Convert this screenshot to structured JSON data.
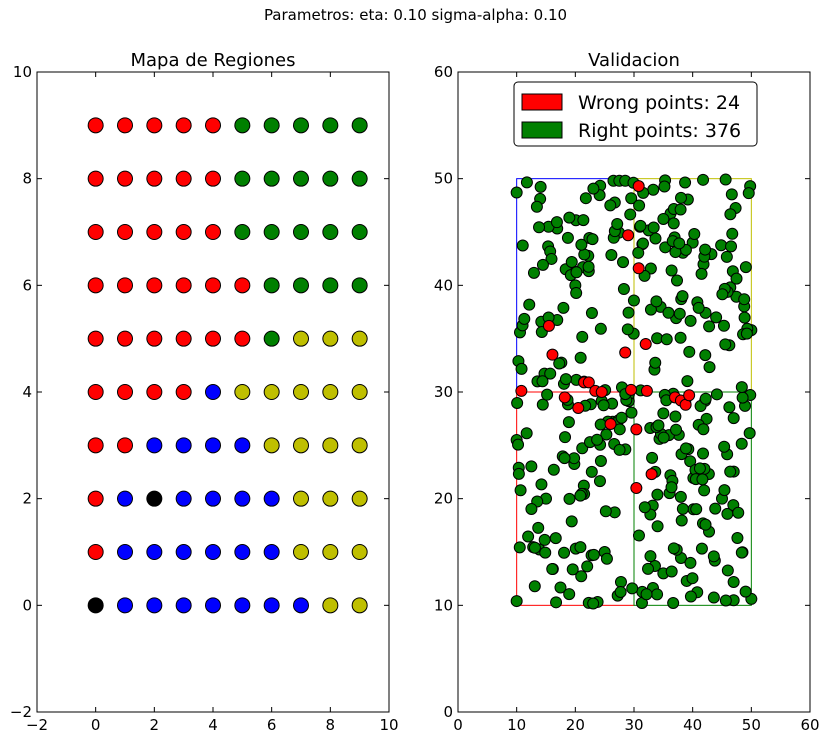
{
  "suptitle": "Parametros: eta: 0.10 sigma-alpha: 0.10",
  "colors": {
    "red": "#ff0000",
    "green": "#008000",
    "blue": "#0000ff",
    "yellow": "#bfbf00",
    "black": "#000000"
  },
  "chart_data": [
    {
      "type": "scatter",
      "title": "Mapa de Regiones",
      "xlim": [
        -2,
        10
      ],
      "ylim": [
        -2,
        10
      ],
      "xticks": [
        -2,
        0,
        2,
        4,
        6,
        8,
        10
      ],
      "yticks": [
        -2,
        0,
        2,
        4,
        6,
        8,
        10
      ],
      "grid": false,
      "rows": [
        {
          "y": 9,
          "colors": [
            "red",
            "red",
            "red",
            "red",
            "red",
            "green",
            "green",
            "green",
            "green",
            "green"
          ]
        },
        {
          "y": 8,
          "colors": [
            "red",
            "red",
            "red",
            "red",
            "red",
            "green",
            "green",
            "green",
            "green",
            "green"
          ]
        },
        {
          "y": 7,
          "colors": [
            "red",
            "red",
            "red",
            "red",
            "red",
            "green",
            "green",
            "green",
            "green",
            "green"
          ]
        },
        {
          "y": 6,
          "colors": [
            "red",
            "red",
            "red",
            "red",
            "red",
            "red",
            "green",
            "green",
            "green",
            "green"
          ]
        },
        {
          "y": 5,
          "colors": [
            "red",
            "red",
            "red",
            "red",
            "red",
            "red",
            "green",
            "yellow",
            "yellow",
            "yellow"
          ]
        },
        {
          "y": 4,
          "colors": [
            "red",
            "red",
            "red",
            "red",
            "blue",
            "yellow",
            "yellow",
            "yellow",
            "yellow",
            "yellow"
          ]
        },
        {
          "y": 3,
          "colors": [
            "red",
            "red",
            "blue",
            "blue",
            "blue",
            "blue",
            "yellow",
            "yellow",
            "yellow",
            "yellow"
          ]
        },
        {
          "y": 2,
          "colors": [
            "red",
            "blue",
            "black",
            "blue",
            "blue",
            "blue",
            "blue",
            "yellow",
            "yellow",
            "yellow"
          ]
        },
        {
          "y": 1,
          "colors": [
            "red",
            "blue",
            "blue",
            "blue",
            "blue",
            "blue",
            "blue",
            "yellow",
            "yellow",
            "yellow"
          ]
        },
        {
          "y": 0,
          "colors": [
            "black",
            "blue",
            "blue",
            "blue",
            "blue",
            "blue",
            "blue",
            "blue",
            "yellow",
            "yellow"
          ]
        }
      ]
    },
    {
      "type": "scatter",
      "title": "Validacion",
      "xlim": [
        0,
        60
      ],
      "ylim": [
        0,
        60
      ],
      "xticks": [
        0,
        10,
        20,
        30,
        40,
        50,
        60
      ],
      "yticks": [
        0,
        10,
        20,
        30,
        40,
        50,
        60
      ],
      "grid": false,
      "legend_position": "top-center",
      "series": [
        {
          "name": "Wrong points: 24",
          "color": "red",
          "count": 24
        },
        {
          "name": "Right points: 376",
          "color": "green",
          "count": 376
        }
      ],
      "regions": [
        {
          "color": "blue",
          "x": [
            10,
            30
          ],
          "y": [
            30,
            50
          ]
        },
        {
          "color": "yellow",
          "x": [
            30,
            50
          ],
          "y": [
            30,
            50
          ]
        },
        {
          "color": "red",
          "x": [
            10,
            30
          ],
          "y": [
            10,
            30
          ]
        },
        {
          "color": "green",
          "x": [
            30,
            50
          ],
          "y": [
            10,
            30
          ]
        }
      ],
      "wrong_points": [
        [
          29.0,
          44.7
        ],
        [
          30.8,
          41.6
        ],
        [
          30.8,
          49.3
        ],
        [
          28.5,
          33.7
        ],
        [
          32.0,
          34.5
        ],
        [
          15.5,
          36.2
        ],
        [
          16.1,
          33.5
        ],
        [
          10.8,
          30.1
        ],
        [
          21.5,
          30.9
        ],
        [
          22.3,
          30.9
        ],
        [
          23.4,
          30.1
        ],
        [
          24.5,
          30.0
        ],
        [
          29.5,
          30.2
        ],
        [
          32.2,
          30.1
        ],
        [
          30.4,
          26.5
        ],
        [
          37.0,
          29.5
        ],
        [
          38.0,
          29.2
        ],
        [
          38.8,
          28.8
        ],
        [
          39.4,
          29.7
        ],
        [
          30.4,
          21.0
        ],
        [
          33.0,
          22.3
        ],
        [
          18.2,
          29.5
        ],
        [
          20.5,
          28.5
        ],
        [
          26.0,
          27.0
        ]
      ],
      "right_points_sample": [
        [
          10.0,
          48.7
        ],
        [
          10.3,
          32.9
        ],
        [
          10.0,
          25.5
        ],
        [
          10.0,
          10.4
        ],
        [
          50.0,
          10.6
        ],
        [
          50.0,
          35.8
        ],
        [
          49.8,
          49.3
        ],
        [
          26.5,
          49.8
        ],
        [
          27.5,
          49.8
        ],
        [
          28.5,
          49.8
        ],
        [
          14.0,
          48.1
        ],
        [
          20.1,
          46.1
        ],
        [
          40.0,
          44.0
        ],
        [
          44.0,
          37.0
        ],
        [
          35.0,
          28.0
        ],
        [
          15.0,
          20.0
        ],
        [
          25.0,
          15.0
        ],
        [
          45.0,
          20.0
        ],
        [
          35.0,
          13.0
        ],
        [
          20.0,
          40.0
        ]
      ]
    }
  ]
}
